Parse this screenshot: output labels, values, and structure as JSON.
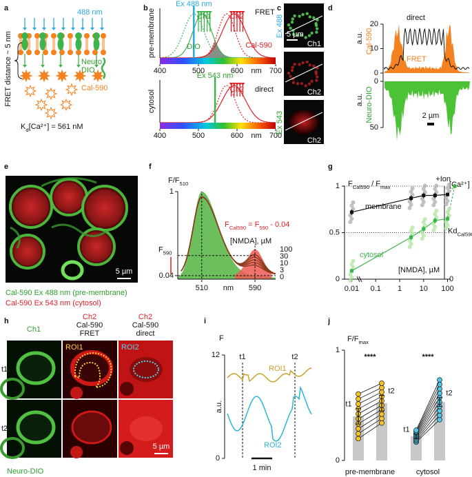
{
  "panels": [
    "a",
    "b",
    "c",
    "d",
    "e",
    "f",
    "g",
    "h",
    "i",
    "j"
  ],
  "a": {
    "wavelength": "488 nm",
    "distance": "FRET distance ~ 5 nm",
    "sensor": [
      "Neuro",
      "DIO"
    ],
    "dye": "Cal-590",
    "kd": [
      "K",
      "d",
      "[Ca²⁺] = 561 nM"
    ]
  },
  "b": {
    "xlim": [
      400,
      700
    ],
    "xticks": [
      400,
      500,
      600,
      700
    ],
    "xlabel": "nm",
    "top": {
      "excitation": "Ex 488 nm",
      "ex_nm": 488,
      "mode": "FRET",
      "location": "pre-membrane",
      "sensor": "DIO",
      "dye": "Cal-590",
      "channels": [
        "Ch1",
        "Ch2"
      ],
      "bands": [
        [
          500,
          530
        ],
        [
          585,
          615
        ]
      ],
      "band_colors": [
        "#3cb44b",
        "#e31e24"
      ],
      "spectra": [
        {
          "peak": 488,
          "width": 26,
          "color": "#3cb44b",
          "dash": true
        },
        {
          "peak": 510,
          "width": 24,
          "color": "#3cb44b",
          "dash": false
        },
        {
          "peak": 573,
          "width": 22,
          "color": "#e31e24",
          "dash": true
        },
        {
          "peak": 592,
          "width": 30,
          "color": "#e31e24",
          "dash": false
        }
      ]
    },
    "bottom": {
      "excitation": "Ex 543 nm",
      "ex_nm": 543,
      "mode": "direct",
      "location": "cytosol",
      "channels": [
        "Ch2"
      ],
      "bands": [
        [
          585,
          615
        ]
      ],
      "band_colors": [
        "#e31e24"
      ],
      "spectra": [
        {
          "peak": 573,
          "width": 22,
          "color": "#e31e24",
          "dash": true
        },
        {
          "peak": 592,
          "width": 30,
          "color": "#e31e24",
          "dash": false
        }
      ]
    }
  },
  "c": {
    "excitations": [
      "Ex 488",
      "Ex 543"
    ],
    "scale": "5 µm",
    "channels": [
      "Ch1",
      "Ch2",
      "Ch2"
    ]
  },
  "d": {
    "ylabel_top": [
      "a.u.",
      "Cal-590"
    ],
    "ylabel_bottom": [
      "a.u.",
      "Neuro-DIO"
    ],
    "ylim_top": [
      0,
      20
    ],
    "yticks_top": [
      0,
      10,
      20
    ],
    "ylim_bottom": [
      0,
      50
    ],
    "yticks_bottom": [
      0,
      50
    ],
    "traces": [
      "direct",
      "FRET"
    ],
    "scale": "2 µm"
  },
  "e": {
    "scale": "5 µm",
    "captions": [
      "Cal-590 Ex 488 nm (pre-membrane)",
      "Cal-590 Ex 543 nm (cytosol)"
    ]
  },
  "f": {
    "ylabel": [
      "F/F",
      "510"
    ],
    "xlim": [
      474,
      621
    ],
    "xticks": [
      510,
      590
    ],
    "xlabel": "nm",
    "ylim": [
      0,
      1
    ],
    "yticks": [
      0.04,
      1
    ],
    "f590": {
      "label": [
        "F",
        "590"
      ],
      "value": 0.27
    },
    "equation": [
      "F",
      "Cal590",
      " = F",
      "590",
      " - 0.04"
    ],
    "nmda_label": "[NMDA], µM",
    "nmda": [
      100,
      30,
      10,
      3,
      0
    ]
  },
  "g": {
    "ylabel": [
      "F",
      "Cal590",
      " / F",
      "max"
    ],
    "ylim": [
      0,
      1
    ],
    "yticks": [
      0,
      0.5,
      1
    ],
    "log_x": true,
    "xlim": [
      0.005,
      200
    ],
    "xticks": [
      0.01,
      0.1,
      1,
      10,
      100
    ],
    "x": [
      0.01,
      3,
      10,
      30,
      100
    ],
    "series": [
      {
        "name": "membrane",
        "color": "#111111",
        "values": [
          0.72,
          0.87,
          0.9,
          0.9,
          0.91
        ],
        "errors": [
          0.03,
          0.03,
          0.03,
          0.03,
          0.02
        ]
      },
      {
        "name": "cytosol",
        "color": "#3cb44b",
        "values": [
          0.09,
          0.45,
          0.54,
          0.63,
          0.65
        ],
        "errors": [
          0.02,
          0.03,
          0.03,
          0.03,
          0.03
        ]
      }
    ],
    "ion": {
      "label": "+Ion",
      "x": 200,
      "value": 1
    },
    "right_axis": {
      "label": "[Ca²⁺]",
      "kd": [
        "Kd",
        "Cal590"
      ],
      "kd_value": 0.5,
      "zero": "0"
    },
    "nmda_label": "[NMDA], µM"
  },
  "h": {
    "headers": [
      [
        "Ch1"
      ],
      [
        "Ch2",
        "Cal-590",
        "FRET"
      ],
      [
        "Ch2",
        "Cal-590",
        "direct"
      ]
    ],
    "rois": [
      "ROI1",
      "ROI2"
    ],
    "times": [
      "t1",
      "t2"
    ],
    "scale": "5 µm",
    "caption": "Neuro-DIO"
  },
  "i": {
    "ylabel": "F",
    "unit": "a.u.",
    "ylim": [
      0,
      12
    ],
    "yticks": [
      0,
      12
    ],
    "times": [
      "t1",
      "t2"
    ],
    "rois": [
      "ROI1",
      "ROI2"
    ],
    "scale": "1 min"
  },
  "j": {
    "ylabel": [
      "F/F",
      "max"
    ],
    "ylim": [
      0,
      1
    ],
    "yticks": [
      0,
      1
    ],
    "categories": [
      "pre-membrane",
      "cytosol"
    ],
    "color": "#c8c8c8",
    "series": [
      {
        "name": "t1",
        "values": [
          0.4,
          0.22
        ],
        "errors": [
          0.07,
          0.02
        ]
      },
      {
        "name": "t2",
        "values": [
          0.52,
          0.53
        ],
        "errors": [
          0.07,
          0.04
        ]
      }
    ],
    "significance": [
      "****",
      "****"
    ]
  }
}
